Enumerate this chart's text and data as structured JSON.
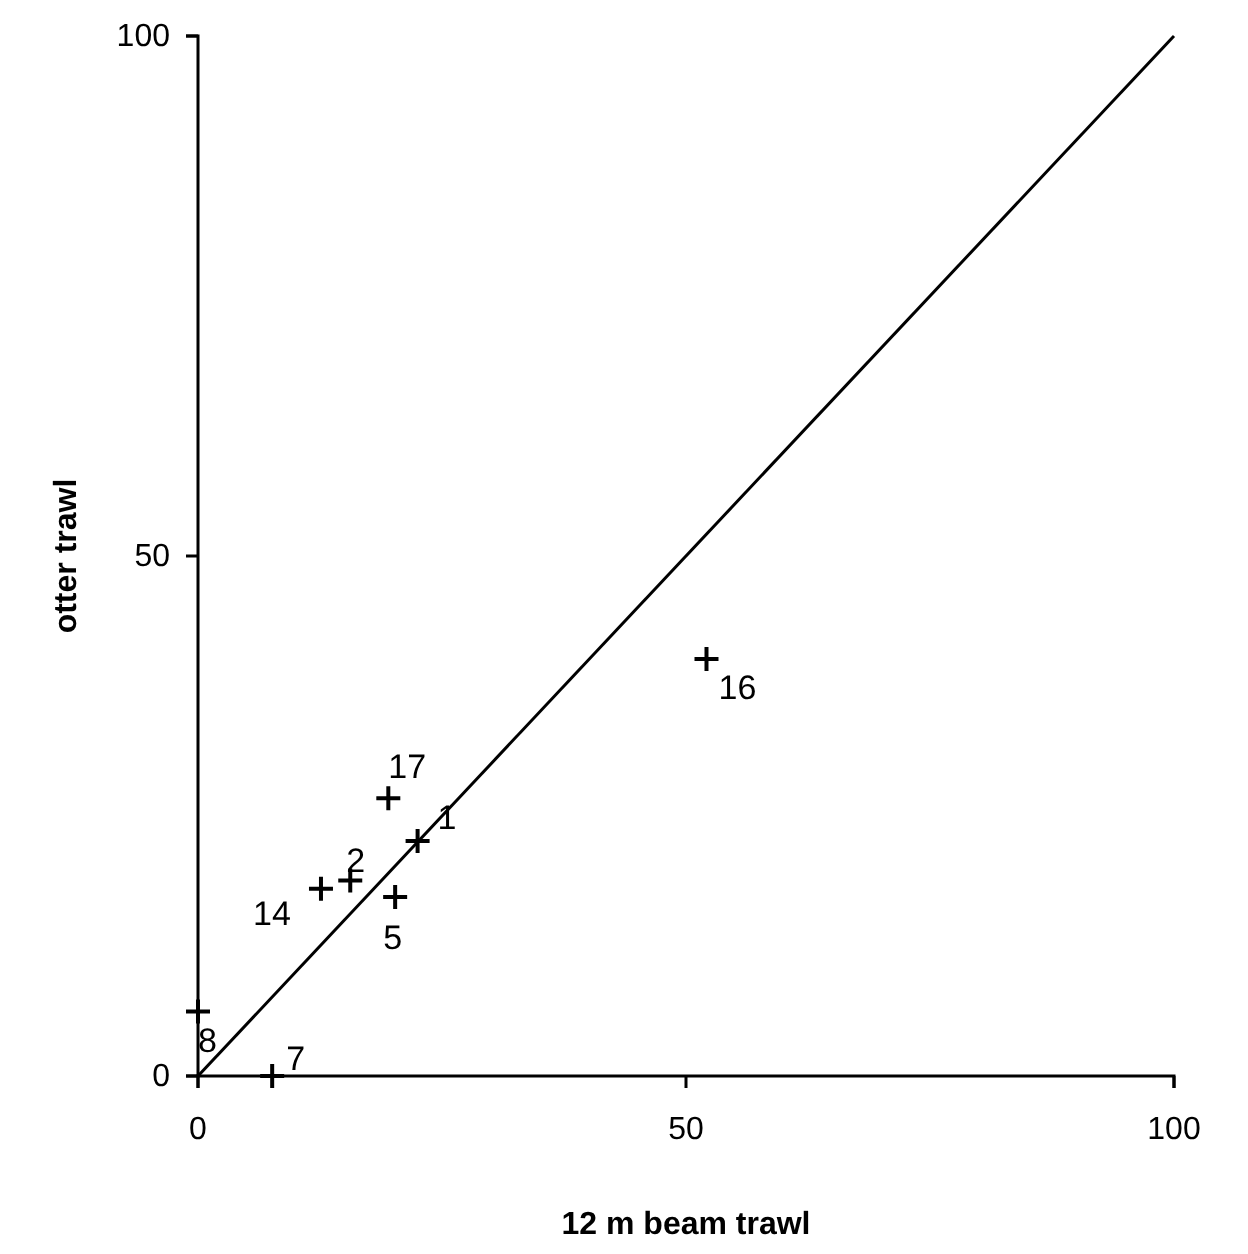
{
  "chart_data": {
    "type": "scatter",
    "xlabel": "12 m beam trawl",
    "ylabel": "otter trawl",
    "xlim": [
      0,
      100
    ],
    "ylim": [
      0,
      100
    ],
    "xticks": [
      0,
      50,
      100
    ],
    "yticks": [
      0,
      50,
      100
    ],
    "grid": false,
    "marker": "cross",
    "series": [
      {
        "color": "#000000",
        "x": [
          19.5,
          22.5,
          12.6,
          15.6,
          20.2,
          0,
          7.6,
          52.1
        ],
        "values": [
          26.7,
          22.6,
          18.0,
          18.8,
          17.2,
          6.2,
          0,
          40.1
        ]
      },
      {
        "type": "line",
        "color": "#000000",
        "x": [
          0,
          100
        ],
        "values": [
          0,
          100
        ],
        "marker": "none",
        "line_style": "solid"
      }
    ],
    "annotations": [
      {
        "text": "17",
        "x": 19.5,
        "y": 26.7
      },
      {
        "text": "1",
        "x": 22.5,
        "y": 22.6
      },
      {
        "text": "14",
        "x": 12.6,
        "y": 18.0
      },
      {
        "text": "2",
        "x": 15.6,
        "y": 18.8
      },
      {
        "text": "5",
        "x": 20.2,
        "y": 17.2
      },
      {
        "text": "8",
        "x": 0,
        "y": 6.2
      },
      {
        "text": "7",
        "x": 7.6,
        "y": 0
      },
      {
        "text": "16",
        "x": 52.1,
        "y": 40.1
      }
    ]
  }
}
